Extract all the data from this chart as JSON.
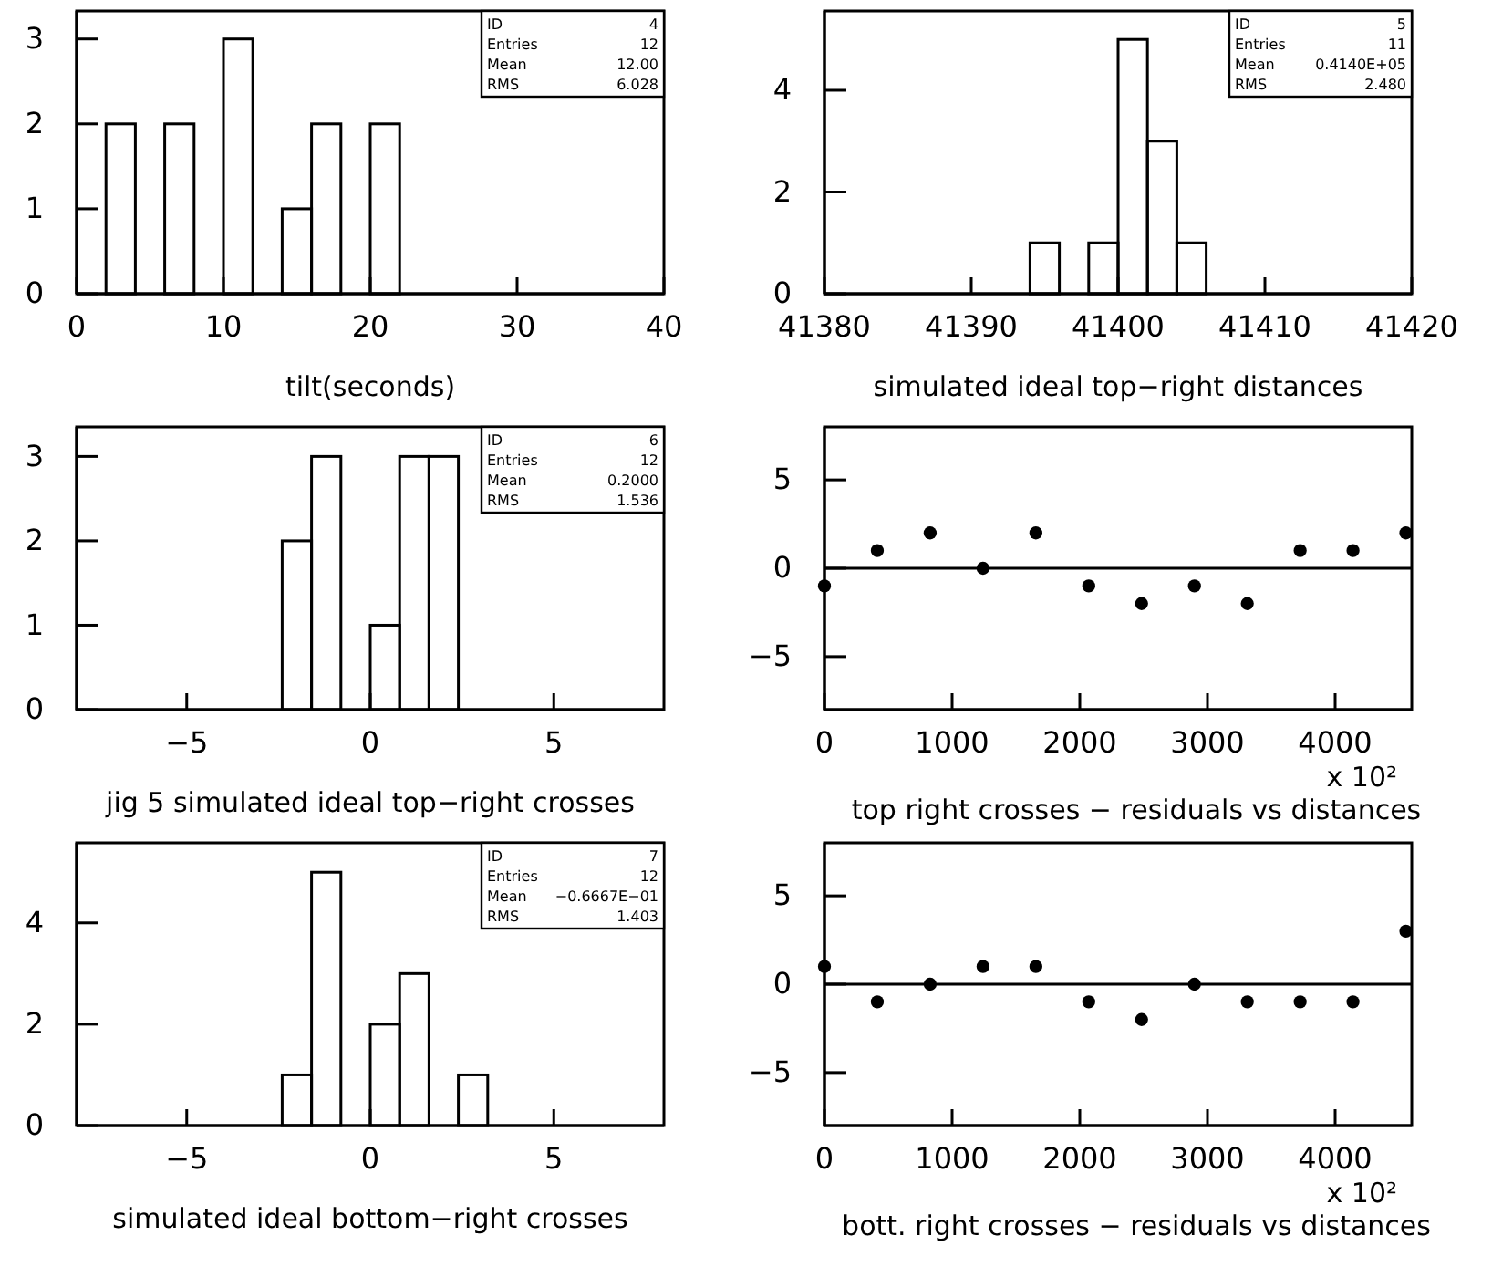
{
  "chart_data": [
    {
      "type": "histogram",
      "xlabel": "tilt(seconds)",
      "bins": [
        0,
        2,
        4,
        6,
        8,
        10,
        12,
        14,
        16,
        18,
        20,
        22
      ],
      "values": [
        0,
        2,
        0,
        2,
        0,
        3,
        0,
        1,
        2,
        0,
        2
      ],
      "color": "#000000",
      "xlim": [
        0,
        40
      ],
      "xticks": [
        0,
        10,
        20,
        30,
        40
      ],
      "ylim": [
        0,
        3.33
      ],
      "yticks": [
        0,
        1,
        2,
        3
      ],
      "grid": false,
      "annotations": [
        "ID",
        "4",
        "Entries",
        "12",
        "Mean",
        "12.00",
        "RMS",
        "6.028"
      ]
    },
    {
      "type": "histogram",
      "xlabel": "simulated ideal top−right distances",
      "bins": [
        41394,
        41396,
        41398,
        41400,
        41402,
        41404,
        41406
      ],
      "values": [
        1,
        0,
        1,
        5,
        3,
        1
      ],
      "color": "#000000",
      "xlim": [
        41380,
        41420
      ],
      "xticks": [
        41380,
        41390,
        41400,
        41410,
        41420
      ],
      "ylim": [
        0,
        5.56
      ],
      "yticks": [
        0,
        2,
        4
      ],
      "grid": false,
      "annotations": [
        "ID",
        "5",
        "Entries",
        "11",
        "Mean",
        "0.4140E+05",
        "RMS",
        "2.480"
      ]
    },
    {
      "type": "histogram",
      "xlabel": "jig 5 simulated ideal top−right crosses",
      "bins": [
        -2.4,
        -1.6,
        -0.8,
        0,
        0.8,
        1.6,
        2.4
      ],
      "values": [
        2,
        3,
        0,
        1,
        3,
        3
      ],
      "color": "#000000",
      "xlim": [
        -8,
        8
      ],
      "xticks": [
        -5,
        0,
        5
      ],
      "ylim": [
        0,
        3.35
      ],
      "yticks": [
        0,
        1,
        2,
        3
      ],
      "grid": false,
      "annotations": [
        "ID",
        "6",
        "Entries",
        "12",
        "Mean",
        "0.2000",
        "RMS",
        "1.536"
      ]
    },
    {
      "type": "scatter",
      "xlabel": "top right crosses − residuals vs distances",
      "x": [
        0,
        414,
        828,
        1242,
        1656,
        2070,
        2484,
        2898,
        3312,
        3726,
        4140,
        4554
      ],
      "values": [
        -1,
        1,
        2,
        0,
        2,
        -1,
        -2,
        -1,
        -2,
        1,
        1,
        2
      ],
      "color": "#000000",
      "marker": "circle",
      "xlim": [
        0,
        4600
      ],
      "xticks": [
        0,
        1000,
        2000,
        3000,
        4000
      ],
      "ylim": [
        -8,
        8
      ],
      "yticks": [
        -5,
        0,
        5
      ],
      "grid": false,
      "ref_lines": [
        {
          "axis": "y",
          "value": 0
        }
      ],
      "annotations": [
        "x 10²"
      ]
    },
    {
      "type": "histogram",
      "xlabel": "simulated ideal bottom−right crosses",
      "bins": [
        -2.4,
        -1.6,
        -0.8,
        0,
        0.8,
        1.6,
        2.4,
        3.2
      ],
      "values": [
        1,
        5,
        0,
        2,
        3,
        0,
        1
      ],
      "color": "#000000",
      "xlim": [
        -8,
        8
      ],
      "xticks": [
        -5,
        0,
        5
      ],
      "ylim": [
        0,
        5.58
      ],
      "yticks": [
        0,
        2,
        4
      ],
      "grid": false,
      "annotations": [
        "ID",
        "7",
        "Entries",
        "12",
        "Mean",
        "−0.6667E−01",
        "RMS",
        "1.403"
      ]
    },
    {
      "type": "scatter",
      "xlabel": "bott. right crosses − residuals vs distances",
      "x": [
        0,
        414,
        828,
        1242,
        1656,
        2070,
        2484,
        2898,
        3312,
        3726,
        4140,
        4554
      ],
      "values": [
        1,
        -1,
        0,
        1,
        1,
        -1,
        -2,
        0,
        -1,
        -1,
        -1,
        3
      ],
      "color": "#000000",
      "marker": "circle",
      "xlim": [
        0,
        4600
      ],
      "xticks": [
        0,
        1000,
        2000,
        3000,
        4000
      ],
      "ylim": [
        -8,
        8
      ],
      "yticks": [
        -5,
        0,
        5
      ],
      "grid": false,
      "ref_lines": [
        {
          "axis": "y",
          "value": 0
        }
      ],
      "annotations": [
        "x 10²"
      ]
    }
  ]
}
